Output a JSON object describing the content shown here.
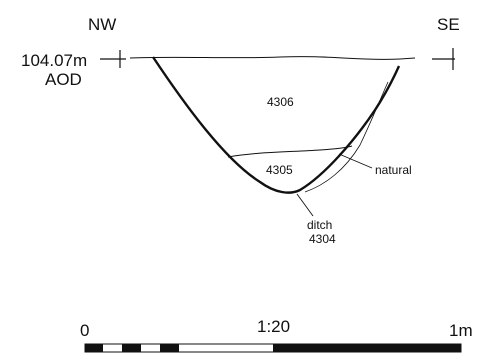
{
  "orientation": {
    "left": "NW",
    "right": "SE"
  },
  "datum": {
    "height": "104.07m",
    "unit": "AOD"
  },
  "contexts": [
    {
      "id": "4306"
    },
    {
      "id": "4305"
    }
  ],
  "annotations": {
    "natural": "natural",
    "cut_number": "ditch",
    "cut_id": "4304"
  },
  "scale": {
    "start": "0",
    "ratio": "1:20",
    "end": "1m"
  }
}
